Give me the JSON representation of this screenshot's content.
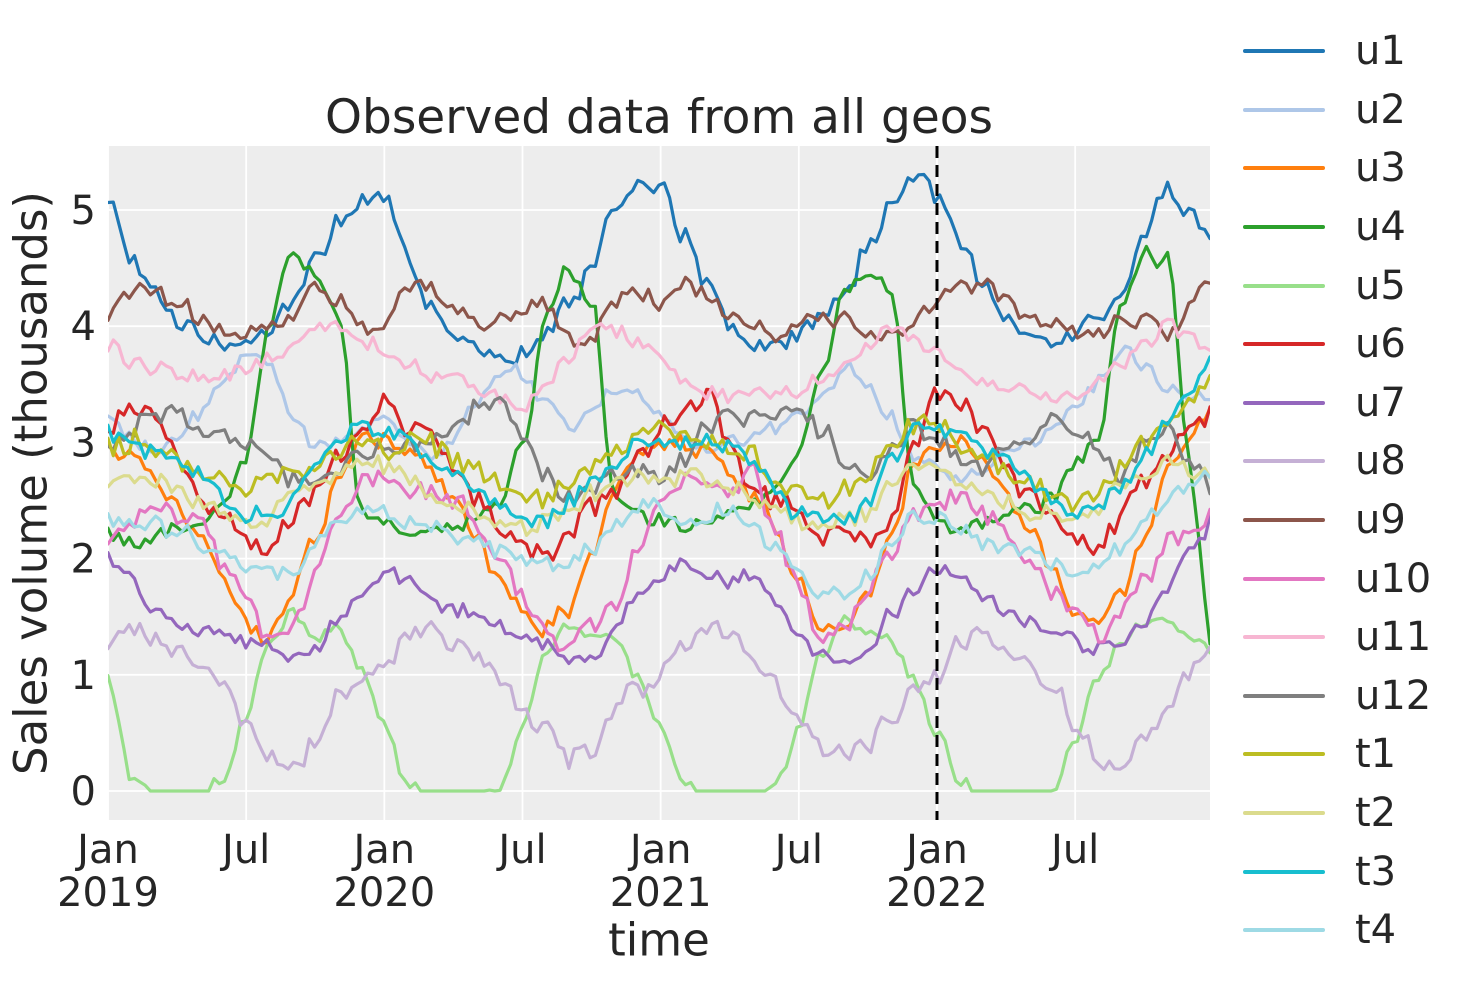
{
  "figure": {
    "title": "Observed data from all geos",
    "xlabel": "time",
    "ylabel": "Sales volume (thousands)",
    "colors": {
      "background": "#ffffff",
      "plot_background": "#ededed",
      "grid": "#ffffff",
      "text": "#262626",
      "event_line": "#000000"
    }
  },
  "chart_data": {
    "type": "line",
    "title": "Observed data from all geos",
    "xlabel": "time",
    "ylabel": "Sales volume (thousands)",
    "x_start": "2019-01",
    "x_frequency": "monthly",
    "n_points": 48,
    "grid": true,
    "legend_position": "right",
    "ylim": [
      -0.25,
      5.55
    ],
    "y_ticks": [
      0,
      1,
      2,
      3,
      4,
      5
    ],
    "x_tick_labels": [
      {
        "line1": "Jan",
        "line2": "2019",
        "t": 0
      },
      {
        "line1": "Jul",
        "line2": "",
        "t": 0.5
      },
      {
        "line1": "Jan",
        "line2": "2020",
        "t": 1
      },
      {
        "line1": "Jul",
        "line2": "",
        "t": 1.5
      },
      {
        "line1": "Jan",
        "line2": "2021",
        "t": 2
      },
      {
        "line1": "Jul",
        "line2": "",
        "t": 2.5
      },
      {
        "line1": "Jan",
        "line2": "2022",
        "t": 3
      },
      {
        "line1": "Jul",
        "line2": "",
        "t": 3.5
      }
    ],
    "event_line": {
      "date": "2022-01",
      "month_index": 36,
      "style": "dashed"
    },
    "series": [
      {
        "name": "u1",
        "color": "#1f77b4",
        "noise": 0.07,
        "clamp_zero": false,
        "values": [
          5.1,
          4.6,
          4.25,
          4.0,
          3.9,
          3.85,
          3.9,
          4.0,
          4.2,
          4.55,
          4.9,
          5.1,
          5.1,
          4.65,
          4.2,
          3.95,
          3.85,
          3.8,
          3.85,
          3.95,
          4.15,
          4.5,
          4.95,
          5.2,
          5.25,
          4.8,
          4.35,
          4.05,
          3.9,
          3.85,
          3.9,
          4.0,
          4.25,
          4.7,
          5.05,
          5.3,
          5.05,
          4.75,
          4.3,
          4.0,
          3.85,
          3.85,
          3.9,
          4.05,
          4.3,
          4.8,
          5.2,
          5.0
        ]
      },
      {
        "name": "u2",
        "color": "#aec7e8",
        "noise": 0.06,
        "clamp_zero": false,
        "values": [
          3.15,
          3.0,
          2.9,
          3.0,
          3.2,
          3.45,
          3.7,
          3.6,
          3.25,
          3.0,
          3.0,
          3.1,
          3.2,
          3.0,
          2.85,
          2.95,
          3.25,
          3.5,
          3.6,
          3.35,
          3.2,
          3.3,
          3.45,
          3.4,
          3.2,
          3.0,
          2.95,
          3.05,
          3.1,
          3.2,
          3.3,
          3.45,
          3.7,
          3.55,
          3.25,
          2.95,
          2.85,
          2.75,
          2.8,
          2.9,
          3.0,
          3.1,
          3.3,
          3.5,
          3.8,
          3.6,
          3.45,
          3.4
        ]
      },
      {
        "name": "u3",
        "color": "#ff7f0e",
        "noise": 0.07,
        "clamp_zero": false,
        "values": [
          2.95,
          2.9,
          2.7,
          2.45,
          2.15,
          1.85,
          1.45,
          1.4,
          1.75,
          2.15,
          2.7,
          3.0,
          3.0,
          2.9,
          2.75,
          2.5,
          2.2,
          1.9,
          1.55,
          1.4,
          1.6,
          2.0,
          2.55,
          2.9,
          2.95,
          3.0,
          2.9,
          2.75,
          2.5,
          2.2,
          1.8,
          1.45,
          1.4,
          1.7,
          2.2,
          2.8,
          2.95,
          3.0,
          2.8,
          2.55,
          2.25,
          1.9,
          1.55,
          1.45,
          1.7,
          2.2,
          2.7,
          3.0
        ]
      },
      {
        "name": "u4",
        "color": "#2ca02c",
        "noise": 0.06,
        "clamp_zero": false,
        "values": [
          2.25,
          2.15,
          2.2,
          2.3,
          2.35,
          2.45,
          2.9,
          4.0,
          4.6,
          4.45,
          4.1,
          2.4,
          2.3,
          2.2,
          2.25,
          2.3,
          2.4,
          2.5,
          3.0,
          4.1,
          4.5,
          4.2,
          2.6,
          2.35,
          2.35,
          2.25,
          2.3,
          2.35,
          2.45,
          2.55,
          2.9,
          3.6,
          4.3,
          4.5,
          4.3,
          2.6,
          2.3,
          2.2,
          2.25,
          2.35,
          2.4,
          2.5,
          2.8,
          3.0,
          4.2,
          4.6,
          4.55,
          2.8
        ]
      },
      {
        "name": "u5",
        "color": "#98df8a",
        "noise": 0.05,
        "clamp_zero": true,
        "values": [
          0.95,
          0.1,
          0.0,
          0.0,
          0.0,
          0.05,
          0.6,
          1.25,
          1.5,
          1.3,
          1.4,
          1.05,
          0.6,
          0.05,
          0.0,
          0.0,
          0.0,
          0.05,
          0.55,
          1.2,
          1.45,
          1.35,
          1.3,
          1.0,
          0.55,
          0.05,
          0.0,
          0.0,
          0.0,
          0.05,
          0.5,
          1.15,
          1.45,
          1.4,
          1.25,
          0.95,
          0.5,
          0.05,
          0.0,
          0.0,
          0.0,
          0.05,
          0.45,
          1.0,
          1.3,
          1.45,
          1.5,
          1.35
        ]
      },
      {
        "name": "u6",
        "color": "#d62728",
        "noise": 0.09,
        "clamp_zero": false,
        "values": [
          3.0,
          3.3,
          3.1,
          2.8,
          2.55,
          2.35,
          2.1,
          2.1,
          2.35,
          2.6,
          2.85,
          3.1,
          3.35,
          3.2,
          3.15,
          2.85,
          2.55,
          2.3,
          2.1,
          2.05,
          2.25,
          2.5,
          2.7,
          2.95,
          3.15,
          3.25,
          3.35,
          2.95,
          2.65,
          2.5,
          2.3,
          2.1,
          2.15,
          2.2,
          2.4,
          2.9,
          3.4,
          3.3,
          3.0,
          2.75,
          2.5,
          2.3,
          2.15,
          2.1,
          2.3,
          2.6,
          2.9,
          3.05
        ]
      },
      {
        "name": "u7",
        "color": "#9467bd",
        "noise": 0.06,
        "clamp_zero": false,
        "values": [
          2.0,
          1.8,
          1.6,
          1.5,
          1.45,
          1.35,
          1.3,
          1.25,
          1.15,
          1.25,
          1.5,
          1.75,
          1.9,
          1.85,
          1.7,
          1.6,
          1.55,
          1.45,
          1.35,
          1.25,
          1.15,
          1.2,
          1.45,
          1.7,
          1.8,
          1.9,
          1.85,
          1.75,
          1.8,
          1.55,
          1.3,
          1.15,
          1.05,
          1.2,
          1.5,
          1.7,
          1.95,
          1.85,
          1.7,
          1.55,
          1.45,
          1.35,
          1.25,
          1.2,
          1.3,
          1.5,
          1.75,
          2.05
        ]
      },
      {
        "name": "u8",
        "color": "#c5b0d5",
        "noise": 0.08,
        "clamp_zero": true,
        "values": [
          1.2,
          1.4,
          1.3,
          1.2,
          1.1,
          0.9,
          0.6,
          0.35,
          0.25,
          0.45,
          0.8,
          0.95,
          1.1,
          1.35,
          1.4,
          1.25,
          1.2,
          1.0,
          0.7,
          0.45,
          0.25,
          0.35,
          0.7,
          0.9,
          1.05,
          1.3,
          1.35,
          1.3,
          1.15,
          0.95,
          0.65,
          0.4,
          0.3,
          0.4,
          0.65,
          0.85,
          1.0,
          1.3,
          1.4,
          1.25,
          1.1,
          0.9,
          0.6,
          0.35,
          0.3,
          0.5,
          0.75,
          1.0
        ]
      },
      {
        "name": "u9",
        "color": "#8c564b",
        "noise": 0.07,
        "clamp_zero": false,
        "values": [
          4.1,
          4.3,
          4.35,
          4.2,
          4.05,
          3.95,
          4.0,
          4.05,
          4.15,
          4.35,
          4.25,
          4.0,
          4.05,
          4.3,
          4.35,
          4.2,
          4.05,
          4.1,
          4.15,
          4.2,
          3.95,
          3.9,
          4.2,
          4.3,
          4.2,
          4.35,
          4.25,
          4.1,
          4.05,
          3.95,
          4.0,
          4.1,
          4.05,
          3.95,
          3.9,
          4.05,
          4.15,
          4.3,
          4.4,
          4.25,
          4.1,
          4.0,
          3.95,
          3.95,
          4.0,
          4.05,
          3.95,
          4.2
        ]
      },
      {
        "name": "u10",
        "color": "#e377c2",
        "noise": 0.08,
        "clamp_zero": false,
        "values": [
          2.15,
          2.3,
          2.5,
          2.4,
          2.3,
          2.0,
          1.65,
          1.3,
          1.45,
          1.85,
          2.3,
          2.6,
          2.7,
          2.55,
          2.6,
          2.45,
          2.3,
          2.05,
          1.7,
          1.4,
          1.3,
          1.5,
          1.6,
          2.1,
          2.45,
          2.6,
          2.7,
          2.55,
          2.75,
          2.2,
          1.75,
          1.3,
          1.4,
          1.75,
          2.1,
          2.45,
          2.5,
          2.6,
          2.4,
          2.2,
          2.0,
          1.75,
          1.5,
          1.35,
          1.55,
          1.85,
          2.1,
          2.2
        ]
      },
      {
        "name": "u11",
        "color": "#f7b6d2",
        "noise": 0.06,
        "clamp_zero": false,
        "values": [
          3.85,
          3.7,
          3.6,
          3.55,
          3.5,
          3.55,
          3.6,
          3.7,
          3.8,
          3.95,
          4.0,
          3.9,
          3.8,
          3.65,
          3.55,
          3.5,
          3.45,
          3.35,
          3.3,
          3.5,
          3.75,
          3.95,
          3.9,
          3.85,
          3.75,
          3.6,
          3.5,
          3.45,
          3.5,
          3.45,
          3.4,
          3.55,
          3.7,
          3.85,
          3.95,
          3.9,
          3.8,
          3.65,
          3.55,
          3.45,
          3.4,
          3.35,
          3.35,
          3.5,
          3.7,
          3.9,
          4.05,
          3.9
        ]
      },
      {
        "name": "u12",
        "color": "#7f7f7f",
        "noise": 0.08,
        "clamp_zero": false,
        "values": [
          2.9,
          3.1,
          3.25,
          3.3,
          3.2,
          3.15,
          3.05,
          2.9,
          2.7,
          2.6,
          2.7,
          2.8,
          2.85,
          2.95,
          3.05,
          3.15,
          3.3,
          3.35,
          3.05,
          2.7,
          2.55,
          2.65,
          2.8,
          2.75,
          2.7,
          2.9,
          3.15,
          3.3,
          3.25,
          3.3,
          3.35,
          3.1,
          2.85,
          2.7,
          2.95,
          3.1,
          3.0,
          2.9,
          2.8,
          2.95,
          3.1,
          3.2,
          3.05,
          2.9,
          2.75,
          2.95,
          3.1,
          2.85
        ]
      },
      {
        "name": "t1",
        "color": "#bcbd22",
        "noise": 0.09,
        "clamp_zero": false,
        "values": [
          2.95,
          3.05,
          3.0,
          2.9,
          2.8,
          2.65,
          2.55,
          2.6,
          2.7,
          2.8,
          2.95,
          3.05,
          3.0,
          3.1,
          3.0,
          2.85,
          2.75,
          2.65,
          2.55,
          2.5,
          2.65,
          2.75,
          2.9,
          3.05,
          3.05,
          3.1,
          3.05,
          3.0,
          2.9,
          2.7,
          2.55,
          2.5,
          2.6,
          2.7,
          2.95,
          3.1,
          3.1,
          3.05,
          2.95,
          2.8,
          2.7,
          2.6,
          2.55,
          2.65,
          2.8,
          3.0,
          3.2,
          3.4
        ]
      },
      {
        "name": "t2",
        "color": "#dbdb8d",
        "noise": 0.07,
        "clamp_zero": false,
        "values": [
          2.6,
          2.7,
          2.65,
          2.55,
          2.45,
          2.4,
          2.3,
          2.35,
          2.45,
          2.55,
          2.7,
          2.8,
          2.75,
          2.7,
          2.6,
          2.5,
          2.45,
          2.35,
          2.3,
          2.3,
          2.4,
          2.55,
          2.65,
          2.75,
          2.7,
          2.75,
          2.7,
          2.6,
          2.55,
          2.45,
          2.35,
          2.3,
          2.4,
          2.5,
          2.7,
          2.8,
          2.75,
          2.7,
          2.65,
          2.55,
          2.45,
          2.4,
          2.35,
          2.45,
          2.6,
          2.75,
          2.9,
          2.85
        ]
      },
      {
        "name": "t3",
        "color": "#17becf",
        "noise": 0.07,
        "clamp_zero": false,
        "values": [
          3.1,
          3.0,
          2.95,
          2.85,
          2.7,
          2.5,
          2.4,
          2.4,
          2.5,
          2.7,
          2.95,
          3.15,
          3.1,
          3.05,
          2.95,
          2.8,
          2.65,
          2.5,
          2.4,
          2.35,
          2.5,
          2.65,
          2.9,
          3.1,
          3.05,
          3.0,
          3.05,
          2.95,
          2.85,
          2.6,
          2.45,
          2.4,
          2.35,
          2.5,
          2.9,
          3.2,
          3.15,
          3.05,
          2.95,
          2.8,
          2.65,
          2.5,
          2.4,
          2.45,
          2.6,
          2.85,
          3.1,
          3.4
        ]
      },
      {
        "name": "t4",
        "color": "#9edae5",
        "noise": 0.07,
        "clamp_zero": false,
        "values": [
          2.4,
          2.3,
          2.25,
          2.2,
          2.1,
          2.0,
          1.95,
          1.9,
          2.0,
          2.15,
          2.3,
          2.45,
          2.45,
          2.35,
          2.3,
          2.2,
          2.15,
          2.05,
          1.95,
          1.9,
          1.95,
          2.1,
          2.25,
          2.4,
          2.35,
          2.25,
          2.3,
          2.4,
          2.3,
          2.1,
          1.9,
          1.75,
          1.7,
          1.9,
          2.2,
          2.45,
          2.4,
          2.3,
          2.2,
          2.1,
          2.0,
          1.9,
          1.85,
          1.95,
          2.1,
          2.25,
          2.45,
          2.55
        ]
      }
    ]
  }
}
